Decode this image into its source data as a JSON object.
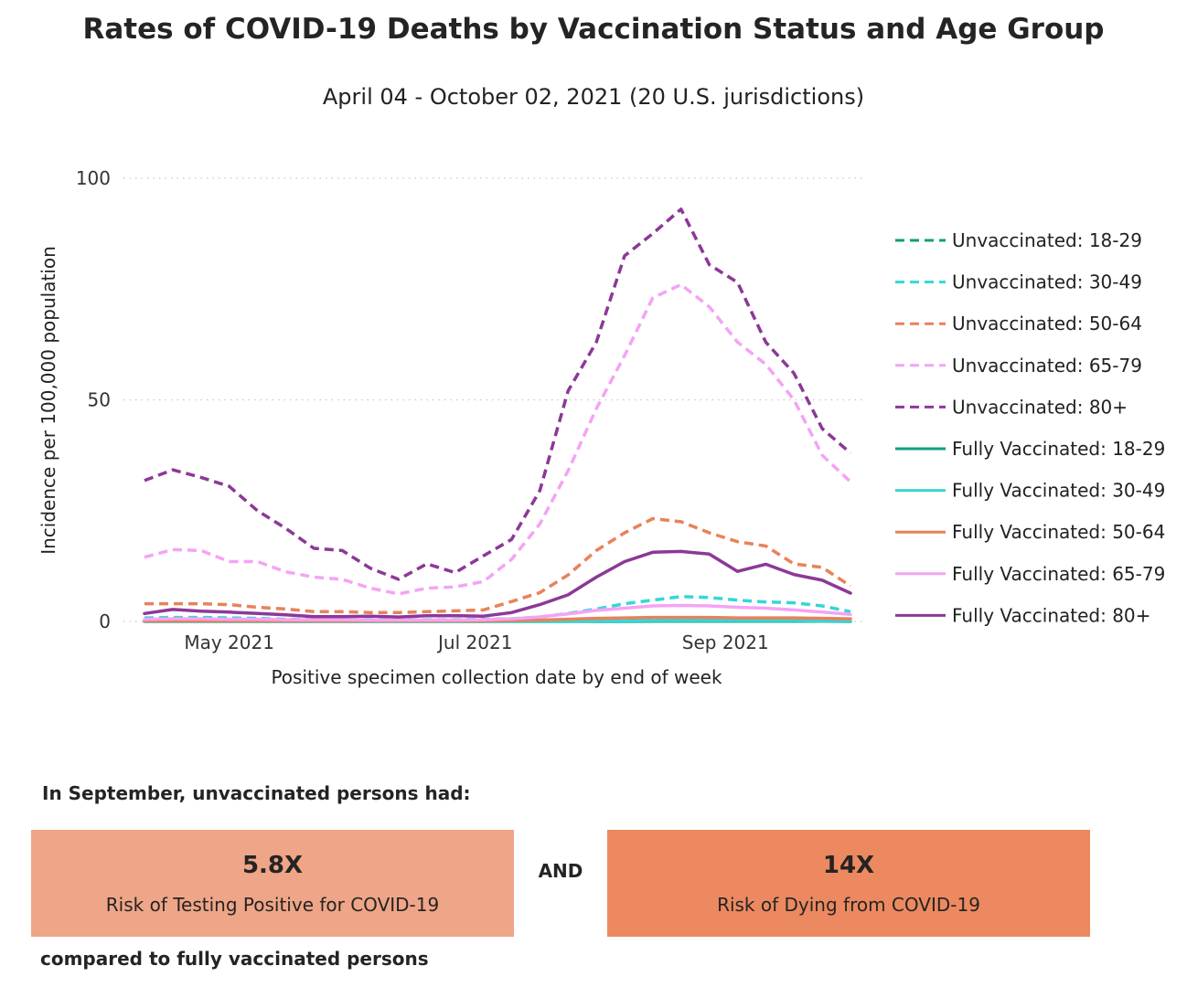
{
  "chart_data": {
    "type": "line",
    "title": "Rates of COVID-19 Deaths by Vaccination Status and Age Group",
    "subtitle": "April 04 - October 02, 2021 (20 U.S. jurisdictions)",
    "xlabel": "Positive specimen collection date by end of week",
    "ylabel": "Incidence per 100,000 population",
    "ylim": [
      0,
      100
    ],
    "yticks": [
      "0",
      "50",
      "100"
    ],
    "xticks": [
      "May 2021",
      "Jul 2021",
      "Sep 2021"
    ],
    "grid": "horizontal dotted",
    "legend_position": "right",
    "x": [
      "2021-04-10",
      "2021-04-17",
      "2021-04-24",
      "2021-05-01",
      "2021-05-08",
      "2021-05-15",
      "2021-05-22",
      "2021-05-29",
      "2021-06-05",
      "2021-06-12",
      "2021-06-19",
      "2021-06-26",
      "2021-07-03",
      "2021-07-10",
      "2021-07-17",
      "2021-07-24",
      "2021-07-31",
      "2021-08-07",
      "2021-08-14",
      "2021-08-21",
      "2021-08-28",
      "2021-09-04",
      "2021-09-11",
      "2021-09-18",
      "2021-09-25",
      "2021-10-02"
    ],
    "series": [
      {
        "name": "Unvaccinated: 18-29",
        "color": "#119e7a",
        "dash": true,
        "values": [
          0.1,
          0.1,
          0.1,
          0.1,
          0.1,
          0.1,
          0.1,
          0.1,
          0.1,
          0.1,
          0.1,
          0.1,
          0.1,
          0.1,
          0.1,
          0.1,
          0.2,
          0.3,
          0.4,
          0.5,
          0.5,
          0.5,
          0.4,
          0.4,
          0.3,
          0.2
        ]
      },
      {
        "name": "Unvaccinated: 30-49",
        "color": "#36d6d8",
        "dash": true,
        "values": [
          0.8,
          0.9,
          0.9,
          0.8,
          0.7,
          0.5,
          0.5,
          0.4,
          0.4,
          0.4,
          0.4,
          0.4,
          0.5,
          0.6,
          1.0,
          1.8,
          2.8,
          4.0,
          4.8,
          5.6,
          5.4,
          4.8,
          4.4,
          4.2,
          3.5,
          2.2
        ]
      },
      {
        "name": "Unvaccinated: 50-64",
        "color": "#e8825a",
        "dash": true,
        "values": [
          4.0,
          4.0,
          4.0,
          3.8,
          3.2,
          2.8,
          2.2,
          2.2,
          2.0,
          2.0,
          2.2,
          2.4,
          2.6,
          4.5,
          6.5,
          10.5,
          16,
          20,
          23.2,
          22.5,
          20,
          18,
          17,
          13,
          12.2,
          8
        ]
      },
      {
        "name": "Unvaccinated: 65-79",
        "color": "#f5a3f5",
        "dash": true,
        "values": [
          14.5,
          16.2,
          16,
          13.5,
          13.5,
          11.2,
          10,
          9.5,
          7.5,
          6.2,
          7.5,
          7.8,
          9,
          14,
          22,
          34,
          48,
          60,
          73,
          76,
          71,
          63,
          58,
          50,
          37.5,
          31.5
        ]
      },
      {
        "name": "Unvaccinated: 80+",
        "color": "#8c3897",
        "dash": true,
        "values": [
          31.8,
          34.2,
          32.5,
          30.5,
          25,
          21,
          16.5,
          16,
          12,
          9.5,
          13,
          11,
          14.8,
          18.5,
          29.5,
          52,
          63,
          82.5,
          87.5,
          93,
          80.5,
          76.5,
          63,
          56,
          43.5,
          38
        ]
      },
      {
        "name": "Fully Vaccinated: 18-29",
        "color": "#119e7a",
        "dash": false,
        "values": [
          0,
          0,
          0,
          0,
          0,
          0,
          0,
          0,
          0,
          0,
          0,
          0,
          0,
          0,
          0,
          0,
          0,
          0,
          0.05,
          0.05,
          0.05,
          0.05,
          0.05,
          0.05,
          0.05,
          0
        ]
      },
      {
        "name": "Fully Vaccinated: 30-49",
        "color": "#36d6d8",
        "dash": false,
        "values": [
          0,
          0,
          0,
          0,
          0,
          0,
          0,
          0,
          0,
          0,
          0,
          0,
          0,
          0,
          0,
          0,
          0.1,
          0.1,
          0.2,
          0.2,
          0.2,
          0.2,
          0.2,
          0.2,
          0.1,
          0.1
        ]
      },
      {
        "name": "Fully Vaccinated: 50-64",
        "color": "#e8825a",
        "dash": false,
        "values": [
          0.1,
          0.1,
          0.1,
          0.1,
          0.1,
          0.1,
          0.1,
          0.1,
          0.1,
          0.1,
          0.1,
          0.1,
          0.1,
          0.2,
          0.3,
          0.5,
          0.7,
          0.8,
          0.9,
          0.9,
          0.9,
          0.8,
          0.8,
          0.8,
          0.7,
          0.6
        ]
      },
      {
        "name": "Fully Vaccinated: 65-79",
        "color": "#f5a3f5",
        "dash": false,
        "values": [
          0.5,
          0.6,
          0.6,
          0.5,
          0.5,
          0.4,
          0.4,
          0.4,
          0.3,
          0.3,
          0.3,
          0.3,
          0.4,
          0.6,
          1.0,
          1.7,
          2.5,
          3.0,
          3.5,
          3.6,
          3.5,
          3.2,
          3.0,
          2.6,
          2.1,
          1.6
        ]
      },
      {
        "name": "Fully Vaccinated: 80+",
        "color": "#8c3897",
        "dash": false,
        "values": [
          1.8,
          2.7,
          2.3,
          2.1,
          1.8,
          1.5,
          1.1,
          1.1,
          1.2,
          1.0,
          1.3,
          1.3,
          1.2,
          2.0,
          3.8,
          6.0,
          10,
          13.5,
          15.6,
          15.8,
          15.2,
          11.3,
          12.9,
          10.6,
          9.3,
          6.4
        ]
      }
    ]
  },
  "summary": {
    "intro": "In September, unvaccinated persons had:",
    "box1": {
      "value": "5.8X",
      "label": "Risk of Testing Positive for COVID-19",
      "color": "#efa587"
    },
    "connector": "AND",
    "box2": {
      "value": "14X",
      "label": "Risk of Dying from COVID-19",
      "color": "#ec8960"
    },
    "outro": "compared to fully vaccinated persons"
  }
}
